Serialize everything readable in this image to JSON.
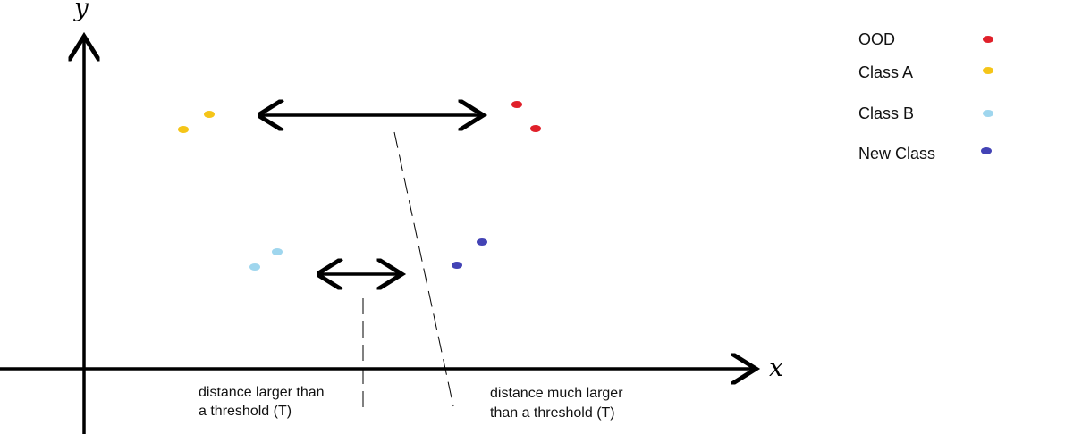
{
  "axes": {
    "x_label": "x",
    "y_label": "y"
  },
  "legend": [
    {
      "label": "OOD",
      "color": "#e0202a"
    },
    {
      "label": "Class A",
      "color": "#f5c518"
    },
    {
      "label": "Class B",
      "color": "#9fd6ee"
    },
    {
      "label": "New Class",
      "color": "#4343b5"
    }
  ],
  "annotations": {
    "threshold_note": {
      "line1": "distance larger than",
      "line2": "a threshold (T)"
    },
    "large_threshold_note": {
      "line1": "distance much larger",
      "line2": "than a threshold (T)"
    }
  },
  "colors": {
    "axis": "#000000",
    "arrow": "#000000",
    "dashed_line": "#000000"
  }
}
